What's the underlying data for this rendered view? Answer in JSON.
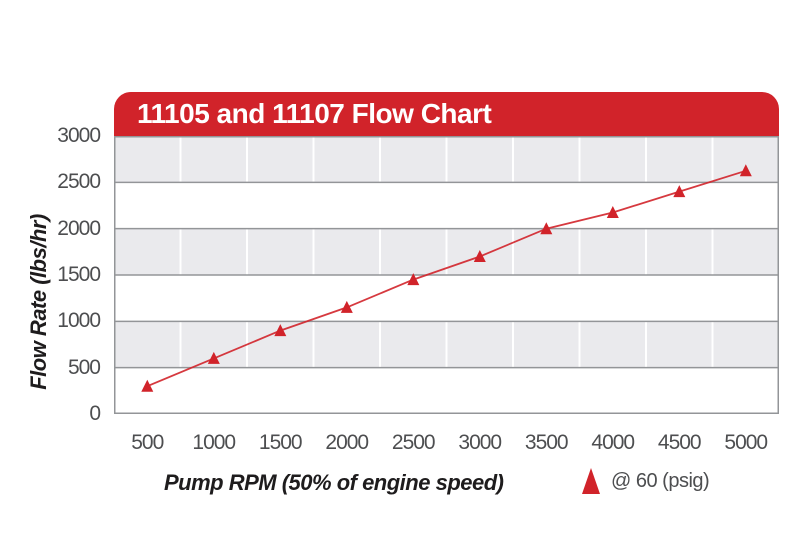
{
  "window": {
    "background": "#ffffff"
  },
  "chart_data": {
    "type": "line",
    "title": "11105 and 11107 Flow Chart",
    "xlabel": "Pump RPM (50% of engine speed)",
    "ylabel": "Flow Rate (lbs/hr)",
    "x": [
      500,
      1000,
      1500,
      2000,
      2500,
      3000,
      3500,
      4000,
      4500,
      5000
    ],
    "x_tick_labels": [
      "500",
      "1000",
      "1500",
      "2000",
      "2500",
      "3000",
      "3500",
      "4000",
      "4500",
      "5000"
    ],
    "y_tick_labels": [
      "0",
      "500",
      "1000",
      "1500",
      "2000",
      "2500",
      "3000"
    ],
    "ylim": [
      0,
      3000
    ],
    "y_tick_step": 500,
    "series": [
      {
        "name": "@ 60 (psig)",
        "marker": "triangle-up",
        "color": "#d1232a",
        "values": [
          300,
          600,
          900,
          1150,
          1450,
          1700,
          2000,
          2175,
          2400,
          2625
        ]
      }
    ],
    "legend": {
      "position": "bottom-right",
      "label": "@ 60 (psig)"
    },
    "grid": {
      "horizontal_lines": true,
      "vertical_lines": true,
      "alternating_row_bands": true
    },
    "colors": {
      "banner": "#d1232a",
      "banner_text": "#ffffff",
      "series": "#d1232a",
      "band_gray": "#eaeaed",
      "band_white": "#ffffff",
      "grid_line": "#939598",
      "vertical_grid_line": "#ffffff",
      "tick_text": "#4d4e50",
      "axis_title_text": "#1e1c1d"
    }
  }
}
